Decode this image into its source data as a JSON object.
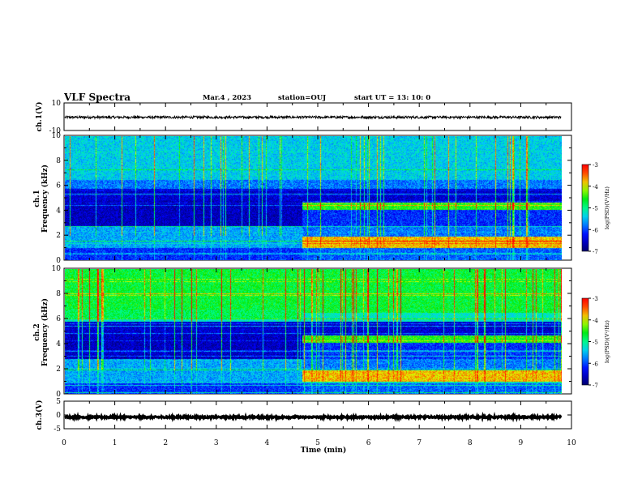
{
  "header": {
    "title": "VLF Spectra",
    "date": "Mar.4 , 2023",
    "station": "station=OUJ",
    "start": "start UT =  13: 10: 0"
  },
  "chart_data": [
    {
      "type": "line",
      "panel": "ch1-waveform",
      "ylabel": "ch.1(V)",
      "ylim": [
        -10,
        10
      ],
      "yticks": [
        "10",
        "-10"
      ],
      "xlim": [
        0,
        10
      ],
      "series": [
        {
          "values_description": "",
          "level": -0.4,
          "noise_amplitude": 0.9
        }
      ]
    },
    {
      "type": "heatmap",
      "panel": "ch1-spectrogram",
      "ylabel": "ch.1\nFrequency (kHz)",
      "ylim": [
        0,
        10
      ],
      "yticks": [
        "0",
        "2",
        "4",
        "6",
        "8",
        "10"
      ],
      "xlim": [
        0,
        10
      ],
      "data_end_min": 9.8,
      "transition_min": 4.67,
      "colorbar": {
        "label": "log(PSD)(V²/Hz)",
        "range": [
          -7,
          -3
        ],
        "ticks": [
          "-3",
          "-4",
          "-5",
          "-6",
          "-7"
        ]
      }
    },
    {
      "type": "heatmap",
      "panel": "ch2-spectrogram",
      "ylabel": "ch.2\nFrequency (kHz)",
      "ylim": [
        0,
        10
      ],
      "yticks": [
        "0",
        "2",
        "4",
        "6",
        "8",
        "10"
      ],
      "xlim": [
        0,
        10
      ],
      "data_end_min": 9.8,
      "transition_min": 4.67,
      "colorbar": {
        "label": "log(PSD)(V²/Hz)",
        "range": [
          -7,
          -3
        ],
        "ticks": [
          "-3",
          "-4",
          "-5",
          "-6",
          "-7"
        ]
      }
    },
    {
      "type": "line",
      "panel": "ch3-waveform",
      "ylabel": "ch.3(V)",
      "ylim": [
        -5,
        5
      ],
      "yticks": [
        "5",
        "0",
        "-5"
      ],
      "xlim": [
        0,
        10
      ],
      "series": [
        {
          "level": -0.8,
          "noise_amplitude": 0.3
        }
      ]
    }
  ],
  "xaxis": {
    "label": "Time (min)",
    "ticks": [
      "0",
      "1",
      "2",
      "3",
      "4",
      "5",
      "6",
      "7",
      "8",
      "9",
      "10"
    ]
  },
  "colors": {
    "deep_blue": "#000080",
    "blue": "#0040ff",
    "cyan": "#00ffff",
    "green": "#00ff40",
    "yellow": "#ffff00",
    "red": "#ff0000"
  }
}
